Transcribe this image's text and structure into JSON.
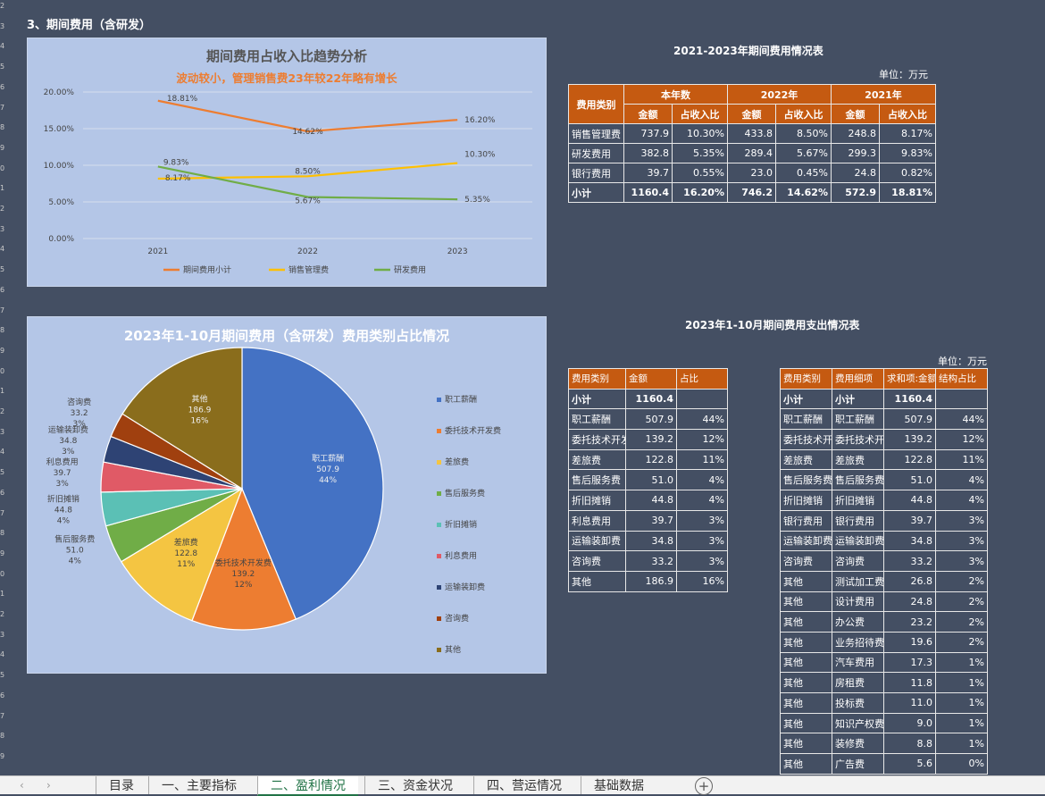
{
  "section_title": "3、期间费用（含研发）",
  "row_numbers": [
    "2",
    "3",
    "4",
    "5",
    "6",
    "7",
    "8",
    "9",
    "0",
    "1",
    "2",
    "3",
    "4",
    "5",
    "6",
    "7",
    "8",
    "9",
    "0",
    "1",
    "2",
    "3",
    "4",
    "5",
    "6",
    "7",
    "8",
    "9",
    "0",
    "1",
    "2",
    "3",
    "4",
    "5",
    "6",
    "7",
    "8",
    "9"
  ],
  "line_chart": {
    "title": "期间费用占收入比趋势分析",
    "subtitle": "波动较小，管理销售费23年较22年略有增长",
    "chart_data": {
      "type": "line",
      "categories": [
        "2021",
        "2022",
        "2023"
      ],
      "ylim": [
        0,
        20
      ],
      "yticks": [
        "0.00%",
        "5.00%",
        "10.00%",
        "15.00%",
        "20.00%"
      ],
      "series": [
        {
          "name": "期间费用小计",
          "values": [
            18.81,
            14.62,
            16.2
          ],
          "labels": [
            "18.81%",
            "14.62%",
            "16.20%"
          ],
          "color": "#ed7d31"
        },
        {
          "name": "销售管理费",
          "values": [
            8.17,
            8.5,
            10.3
          ],
          "labels": [
            "8.17%",
            "8.50%",
            "10.30%"
          ],
          "color": "#ffc000"
        },
        {
          "name": "研发费用",
          "values": [
            9.83,
            5.67,
            5.35
          ],
          "labels": [
            "9.83%",
            "5.67%",
            "5.35%"
          ],
          "color": "#70ad47"
        }
      ]
    }
  },
  "pie_chart": {
    "title": "2023年1-10月期间费用（含研发）费用类别占比情况",
    "chart_data": {
      "type": "pie",
      "slices": [
        {
          "name": "职工薪酬",
          "value": 507.9,
          "value_label": "507.9",
          "pct": "44%",
          "color": "#4472c4"
        },
        {
          "name": "委托技术开发费",
          "value": 139.2,
          "value_label": "139.2",
          "pct": "12%",
          "color": "#ed7d31"
        },
        {
          "name": "差旅费",
          "value": 122.8,
          "value_label": "122.8",
          "pct": "11%",
          "color": "#f4c542"
        },
        {
          "name": "售后服务费",
          "value": 51.0,
          "value_label": "51.0",
          "pct": "4%",
          "color": "#70ad47"
        },
        {
          "name": "折旧摊销",
          "value": 44.8,
          "value_label": "44.8",
          "pct": "4%",
          "color": "#5bc0b5"
        },
        {
          "name": "利息费用",
          "value": 39.7,
          "value_label": "39.7",
          "pct": "3%",
          "color": "#e05a66"
        },
        {
          "name": "运输装卸费",
          "value": 34.8,
          "value_label": "34.8",
          "pct": "3%",
          "color": "#2e4374"
        },
        {
          "name": "咨询费",
          "value": 33.2,
          "value_label": "33.2",
          "pct": "3%",
          "color": "#a0400f"
        },
        {
          "name": "其他",
          "value": 186.9,
          "value_label": "186.9",
          "pct": "16%",
          "color": "#8a6d1c"
        }
      ]
    }
  },
  "table1": {
    "title": "2021-2023年期间费用情况表",
    "unit": "单位：万元",
    "col_category": "费用类别",
    "groups": [
      "本年数",
      "2022年",
      "2021年"
    ],
    "sub_amount": "金额",
    "sub_ratio": "占收入比",
    "rows": [
      {
        "cat": "销售管理费",
        "cells": [
          "737.9",
          "10.30%",
          "433.8",
          "8.50%",
          "248.8",
          "8.17%"
        ]
      },
      {
        "cat": "研发费用",
        "cells": [
          "382.8",
          "5.35%",
          "289.4",
          "5.67%",
          "299.3",
          "9.83%"
        ]
      },
      {
        "cat": "银行费用",
        "cells": [
          "39.7",
          "0.55%",
          "23.0",
          "0.45%",
          "24.8",
          "0.82%"
        ]
      },
      {
        "cat": "小计",
        "cells": [
          "1160.4",
          "16.20%",
          "746.2",
          "14.62%",
          "572.9",
          "18.81%"
        ]
      }
    ]
  },
  "table2": {
    "title": "2023年1-10月期间费用支出情况表",
    "unit": "单位：万元",
    "headers": [
      "费用类别",
      "金额",
      "占比"
    ],
    "rows": [
      [
        "小计",
        "1160.4",
        ""
      ],
      [
        "职工薪酬",
        "507.9",
        "44%"
      ],
      [
        "委托技术开发费",
        "139.2",
        "12%"
      ],
      [
        "差旅费",
        "122.8",
        "11%"
      ],
      [
        "售后服务费",
        "51.0",
        "4%"
      ],
      [
        "折旧摊销",
        "44.8",
        "4%"
      ],
      [
        "利息费用",
        "39.7",
        "3%"
      ],
      [
        "运输装卸费",
        "34.8",
        "3%"
      ],
      [
        "咨询费",
        "33.2",
        "3%"
      ],
      [
        "其他",
        "186.9",
        "16%"
      ]
    ]
  },
  "table3": {
    "headers": [
      "费用类别",
      "费用细项",
      "求和项:金额",
      "结构占比"
    ],
    "rows": [
      [
        "小计",
        "小计",
        "1160.4",
        ""
      ],
      [
        "职工薪酬",
        "职工薪酬",
        "507.9",
        "44%"
      ],
      [
        "委托技术开发费",
        "委托技术开发费",
        "139.2",
        "12%"
      ],
      [
        "差旅费",
        "差旅费",
        "122.8",
        "11%"
      ],
      [
        "售后服务费",
        "售后服务费",
        "51.0",
        "4%"
      ],
      [
        "折旧摊销",
        "折旧摊销",
        "44.8",
        "4%"
      ],
      [
        "银行费用",
        "银行费用",
        "39.7",
        "3%"
      ],
      [
        "运输装卸费",
        "运输装卸费",
        "34.8",
        "3%"
      ],
      [
        "咨询费",
        "咨询费",
        "33.2",
        "3%"
      ],
      [
        "其他",
        "测试加工费",
        "26.8",
        "2%"
      ],
      [
        "其他",
        "设计费用",
        "24.8",
        "2%"
      ],
      [
        "其他",
        "办公费",
        "23.2",
        "2%"
      ],
      [
        "其他",
        "业务招待费",
        "19.6",
        "2%"
      ],
      [
        "其他",
        "汽车费用",
        "17.3",
        "1%"
      ],
      [
        "其他",
        "房租费",
        "11.8",
        "1%"
      ],
      [
        "其他",
        "投标费",
        "11.0",
        "1%"
      ],
      [
        "其他",
        "知识产权费",
        "9.0",
        "1%"
      ],
      [
        "其他",
        "装修费",
        "8.8",
        "1%"
      ],
      [
        "其他",
        "广告费",
        "5.6",
        "0%"
      ]
    ]
  },
  "sheet_tabs": [
    "目录",
    "一、主要指标",
    "二、盈利情况",
    "三、资金状况",
    "四、营运情况",
    "基础数据"
  ],
  "active_tab": "二、盈利情况",
  "colors": {
    "background": "#444f63",
    "chart_bg": "#b4c6e7",
    "header": "#c55a11"
  }
}
